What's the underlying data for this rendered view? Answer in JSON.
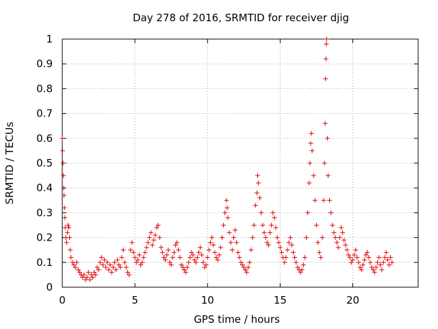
{
  "chart_data": {
    "type": "scatter",
    "title": "Day 278 of 2016, SRMTID for receiver djig",
    "xlabel": "GPS time / hours",
    "ylabel": "SRMTID / TECUs",
    "xlim": [
      0,
      24.5
    ],
    "ylim": [
      0,
      1
    ],
    "xticks": [
      0,
      5,
      10,
      15,
      20
    ],
    "yticks": [
      0,
      0.1,
      0.2,
      0.3,
      0.4,
      0.5,
      0.6,
      0.7,
      0.8,
      0.9,
      1
    ],
    "xtick_labels": [
      "0",
      "5",
      "10",
      "15",
      "20"
    ],
    "ytick_labels": [
      "0",
      "0.1",
      "0.2",
      "0.3",
      "0.4",
      "0.5",
      "0.6",
      "0.7",
      "0.8",
      "0.9",
      "1"
    ],
    "grid": true,
    "marker": "+",
    "color": "#e00000",
    "series": [
      {
        "name": "SRMTID",
        "points": [
          [
            0.0,
            0.6
          ],
          [
            0.02,
            0.55
          ],
          [
            0.05,
            0.5
          ],
          [
            0.08,
            0.45
          ],
          [
            0.1,
            0.4
          ],
          [
            0.12,
            0.37
          ],
          [
            0.15,
            0.32
          ],
          [
            0.18,
            0.28
          ],
          [
            0.2,
            0.24
          ],
          [
            0.25,
            0.2
          ],
          [
            0.3,
            0.18
          ],
          [
            0.35,
            0.22
          ],
          [
            0.4,
            0.25
          ],
          [
            0.45,
            0.24
          ],
          [
            0.5,
            0.2
          ],
          [
            0.55,
            0.15
          ],
          [
            0.6,
            0.12
          ],
          [
            0.7,
            0.1
          ],
          [
            0.8,
            0.09
          ],
          [
            0.9,
            0.08
          ],
          [
            1.0,
            0.1
          ],
          [
            1.1,
            0.07
          ],
          [
            1.2,
            0.06
          ],
          [
            1.3,
            0.05
          ],
          [
            1.4,
            0.04
          ],
          [
            1.5,
            0.05
          ],
          [
            1.6,
            0.03
          ],
          [
            1.7,
            0.04
          ],
          [
            1.8,
            0.06
          ],
          [
            1.9,
            0.03
          ],
          [
            2.0,
            0.05
          ],
          [
            2.1,
            0.04
          ],
          [
            2.2,
            0.06
          ],
          [
            2.3,
            0.05
          ],
          [
            2.4,
            0.08
          ],
          [
            2.5,
            0.07
          ],
          [
            2.6,
            0.1
          ],
          [
            2.7,
            0.12
          ],
          [
            2.8,
            0.09
          ],
          [
            2.9,
            0.11
          ],
          [
            3.0,
            0.08
          ],
          [
            3.1,
            0.1
          ],
          [
            3.2,
            0.07
          ],
          [
            3.3,
            0.09
          ],
          [
            3.4,
            0.06
          ],
          [
            3.5,
            0.08
          ],
          [
            3.6,
            0.1
          ],
          [
            3.7,
            0.07
          ],
          [
            3.8,
            0.11
          ],
          [
            3.9,
            0.09
          ],
          [
            4.0,
            0.08
          ],
          [
            4.1,
            0.12
          ],
          [
            4.2,
            0.15
          ],
          [
            4.3,
            0.1
          ],
          [
            4.4,
            0.08
          ],
          [
            4.5,
            0.06
          ],
          [
            4.6,
            0.05
          ],
          [
            4.7,
            0.15
          ],
          [
            4.8,
            0.18
          ],
          [
            4.9,
            0.14
          ],
          [
            5.0,
            0.12
          ],
          [
            5.1,
            0.1
          ],
          [
            5.2,
            0.11
          ],
          [
            5.3,
            0.13
          ],
          [
            5.4,
            0.09
          ],
          [
            5.5,
            0.1
          ],
          [
            5.6,
            0.12
          ],
          [
            5.7,
            0.14
          ],
          [
            5.8,
            0.16
          ],
          [
            5.9,
            0.18
          ],
          [
            6.0,
            0.2
          ],
          [
            6.1,
            0.22
          ],
          [
            6.2,
            0.17
          ],
          [
            6.3,
            0.19
          ],
          [
            6.4,
            0.21
          ],
          [
            6.5,
            0.24
          ],
          [
            6.6,
            0.25
          ],
          [
            6.7,
            0.2
          ],
          [
            6.8,
            0.16
          ],
          [
            6.9,
            0.14
          ],
          [
            7.0,
            0.12
          ],
          [
            7.1,
            0.11
          ],
          [
            7.2,
            0.13
          ],
          [
            7.3,
            0.15
          ],
          [
            7.4,
            0.1
          ],
          [
            7.5,
            0.09
          ],
          [
            7.6,
            0.12
          ],
          [
            7.7,
            0.14
          ],
          [
            7.8,
            0.17
          ],
          [
            7.9,
            0.18
          ],
          [
            8.0,
            0.15
          ],
          [
            8.1,
            0.12
          ],
          [
            8.2,
            0.09
          ],
          [
            8.3,
            0.08
          ],
          [
            8.4,
            0.07
          ],
          [
            8.5,
            0.06
          ],
          [
            8.6,
            0.08
          ],
          [
            8.7,
            0.1
          ],
          [
            8.8,
            0.12
          ],
          [
            8.9,
            0.14
          ],
          [
            9.0,
            0.13
          ],
          [
            9.1,
            0.11
          ],
          [
            9.2,
            0.1
          ],
          [
            9.3,
            0.12
          ],
          [
            9.4,
            0.14
          ],
          [
            9.5,
            0.16
          ],
          [
            9.6,
            0.13
          ],
          [
            9.7,
            0.1
          ],
          [
            9.8,
            0.08
          ],
          [
            9.9,
            0.09
          ],
          [
            10.0,
            0.12
          ],
          [
            10.1,
            0.15
          ],
          [
            10.2,
            0.18
          ],
          [
            10.3,
            0.2
          ],
          [
            10.4,
            0.17
          ],
          [
            10.5,
            0.14
          ],
          [
            10.6,
            0.12
          ],
          [
            10.7,
            0.11
          ],
          [
            10.8,
            0.13
          ],
          [
            10.9,
            0.16
          ],
          [
            11.0,
            0.2
          ],
          [
            11.1,
            0.25
          ],
          [
            11.2,
            0.3
          ],
          [
            11.3,
            0.35
          ],
          [
            11.35,
            0.32
          ],
          [
            11.4,
            0.28
          ],
          [
            11.5,
            0.22
          ],
          [
            11.6,
            0.18
          ],
          [
            11.7,
            0.15
          ],
          [
            11.8,
            0.2
          ],
          [
            11.9,
            0.23
          ],
          [
            12.0,
            0.18
          ],
          [
            12.1,
            0.14
          ],
          [
            12.2,
            0.12
          ],
          [
            12.3,
            0.1
          ],
          [
            12.4,
            0.09
          ],
          [
            12.5,
            0.08
          ],
          [
            12.6,
            0.07
          ],
          [
            12.7,
            0.06
          ],
          [
            12.8,
            0.08
          ],
          [
            12.9,
            0.1
          ],
          [
            13.0,
            0.15
          ],
          [
            13.1,
            0.2
          ],
          [
            13.2,
            0.25
          ],
          [
            13.3,
            0.33
          ],
          [
            13.4,
            0.38
          ],
          [
            13.45,
            0.45
          ],
          [
            13.5,
            0.42
          ],
          [
            13.6,
            0.36
          ],
          [
            13.7,
            0.3
          ],
          [
            13.8,
            0.25
          ],
          [
            13.9,
            0.22
          ],
          [
            14.0,
            0.2
          ],
          [
            14.1,
            0.18
          ],
          [
            14.2,
            0.17
          ],
          [
            14.3,
            0.22
          ],
          [
            14.4,
            0.25
          ],
          [
            14.5,
            0.3
          ],
          [
            14.6,
            0.28
          ],
          [
            14.7,
            0.24
          ],
          [
            14.8,
            0.2
          ],
          [
            14.9,
            0.18
          ],
          [
            15.0,
            0.16
          ],
          [
            15.1,
            0.14
          ],
          [
            15.2,
            0.12
          ],
          [
            15.3,
            0.1
          ],
          [
            15.4,
            0.12
          ],
          [
            15.5,
            0.15
          ],
          [
            15.6,
            0.18
          ],
          [
            15.7,
            0.2
          ],
          [
            15.8,
            0.17
          ],
          [
            15.9,
            0.14
          ],
          [
            16.0,
            0.12
          ],
          [
            16.1,
            0.1
          ],
          [
            16.2,
            0.08
          ],
          [
            16.3,
            0.07
          ],
          [
            16.4,
            0.06
          ],
          [
            16.5,
            0.07
          ],
          [
            16.6,
            0.09
          ],
          [
            16.7,
            0.12
          ],
          [
            16.8,
            0.2
          ],
          [
            16.9,
            0.3
          ],
          [
            17.0,
            0.42
          ],
          [
            17.05,
            0.5
          ],
          [
            17.1,
            0.58
          ],
          [
            17.15,
            0.62
          ],
          [
            17.2,
            0.55
          ],
          [
            17.3,
            0.45
          ],
          [
            17.4,
            0.35
          ],
          [
            17.5,
            0.25
          ],
          [
            17.6,
            0.18
          ],
          [
            17.7,
            0.14
          ],
          [
            17.8,
            0.12
          ],
          [
            17.9,
            0.2
          ],
          [
            18.0,
            0.35
          ],
          [
            18.05,
            0.5
          ],
          [
            18.1,
            0.66
          ],
          [
            18.12,
            0.84
          ],
          [
            18.15,
            0.92
          ],
          [
            18.18,
            0.98
          ],
          [
            18.2,
            1.0
          ],
          [
            18.25,
            0.6
          ],
          [
            18.3,
            0.45
          ],
          [
            18.4,
            0.35
          ],
          [
            18.5,
            0.3
          ],
          [
            18.6,
            0.25
          ],
          [
            18.7,
            0.22
          ],
          [
            18.8,
            0.2
          ],
          [
            18.9,
            0.18
          ],
          [
            19.0,
            0.16
          ],
          [
            19.1,
            0.2
          ],
          [
            19.2,
            0.24
          ],
          [
            19.3,
            0.22
          ],
          [
            19.4,
            0.19
          ],
          [
            19.5,
            0.17
          ],
          [
            19.6,
            0.15
          ],
          [
            19.7,
            0.13
          ],
          [
            19.8,
            0.12
          ],
          [
            19.9,
            0.1
          ],
          [
            20.0,
            0.11
          ],
          [
            20.1,
            0.13
          ],
          [
            20.2,
            0.15
          ],
          [
            20.3,
            0.12
          ],
          [
            20.4,
            0.1
          ],
          [
            20.5,
            0.08
          ],
          [
            20.6,
            0.07
          ],
          [
            20.7,
            0.09
          ],
          [
            20.8,
            0.11
          ],
          [
            20.9,
            0.13
          ],
          [
            21.0,
            0.14
          ],
          [
            21.1,
            0.12
          ],
          [
            21.2,
            0.1
          ],
          [
            21.3,
            0.08
          ],
          [
            21.4,
            0.07
          ],
          [
            21.5,
            0.06
          ],
          [
            21.6,
            0.08
          ],
          [
            21.7,
            0.1
          ],
          [
            21.8,
            0.12
          ],
          [
            21.9,
            0.09
          ],
          [
            22.0,
            0.07
          ],
          [
            22.1,
            0.1
          ],
          [
            22.2,
            0.12
          ],
          [
            22.3,
            0.14
          ],
          [
            22.4,
            0.11
          ],
          [
            22.5,
            0.09
          ],
          [
            22.6,
            0.12
          ],
          [
            22.7,
            0.1
          ]
        ]
      }
    ]
  }
}
